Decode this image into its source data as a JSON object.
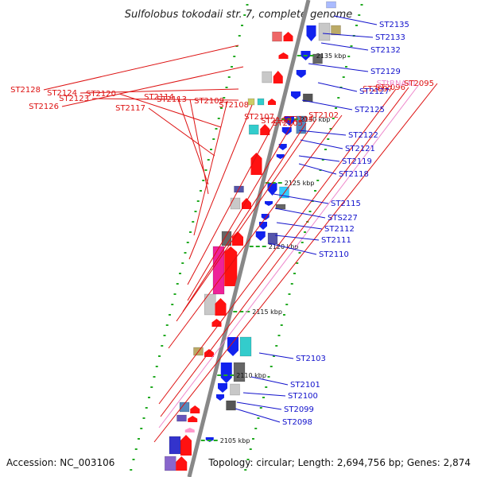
{
  "title": "Sulfolobus tokodaii str. 7, complete genome",
  "accession_text": "Accession: NC_003106",
  "topology_text": "Topology: circular; Length: 2,694,756 bp; Genes: 2,874",
  "colors": {
    "label_left": "#dd1111",
    "label_right": "#1111cc",
    "label_trna": "#ee88cc",
    "backbone": "#888888",
    "tick": "#22aa22",
    "forward": "#ff1111",
    "reverse": "#1122ee"
  },
  "scale_marks": [
    {
      "text": "2135 kbp",
      "kbp": 2135
    },
    {
      "text": "2130 kbp",
      "kbp": 2130
    },
    {
      "text": "2125 kbp",
      "kbp": 2125
    },
    {
      "text": "2120 kbp",
      "kbp": 2120
    },
    {
      "text": "2115 kbp",
      "kbp": 2115
    },
    {
      "text": "2110 kbp",
      "kbp": 2110
    },
    {
      "text": "2105 kbp",
      "kbp": 2105
    }
  ],
  "left_labels": [
    {
      "name": "ST2128",
      "kind": "gene"
    },
    {
      "name": "ST2126",
      "kind": "gene"
    },
    {
      "name": "ST2124",
      "kind": "gene"
    },
    {
      "name": "ST2123",
      "kind": "gene"
    },
    {
      "name": "ST2120",
      "kind": "gene"
    },
    {
      "name": "ST2117",
      "kind": "gene"
    },
    {
      "name": "ST2114",
      "kind": "gene"
    },
    {
      "name": "ST2113",
      "kind": "gene"
    },
    {
      "name": "ST2109",
      "kind": "gene"
    },
    {
      "name": "ST2108",
      "kind": "gene"
    },
    {
      "name": "ST2107",
      "kind": "gene"
    },
    {
      "name": "ST2106",
      "kind": "gene"
    },
    {
      "name": "ST2105",
      "kind": "gene"
    },
    {
      "name": "ST2104",
      "kind": "gene"
    },
    {
      "name": "ST2102",
      "kind": "gene"
    },
    {
      "name": "ST2097",
      "kind": "gene"
    },
    {
      "name": "ST2096",
      "kind": "gene"
    },
    {
      "name": "STtRNA41",
      "kind": "trna"
    },
    {
      "name": "ST2095",
      "kind": "gene"
    }
  ],
  "right_labels": [
    {
      "name": "ST2135"
    },
    {
      "name": "ST2133"
    },
    {
      "name": "ST2132"
    },
    {
      "name": "ST2129"
    },
    {
      "name": "ST2127"
    },
    {
      "name": "ST2125"
    },
    {
      "name": "ST2122"
    },
    {
      "name": "ST2121"
    },
    {
      "name": "ST2119"
    },
    {
      "name": "ST2118"
    },
    {
      "name": "ST2115"
    },
    {
      "name": "STS227"
    },
    {
      "name": "ST2112"
    },
    {
      "name": "ST2111"
    },
    {
      "name": "ST2110"
    },
    {
      "name": "ST2103"
    },
    {
      "name": "ST2101"
    },
    {
      "name": "ST2100"
    },
    {
      "name": "ST2099"
    },
    {
      "name": "ST2098"
    }
  ]
}
